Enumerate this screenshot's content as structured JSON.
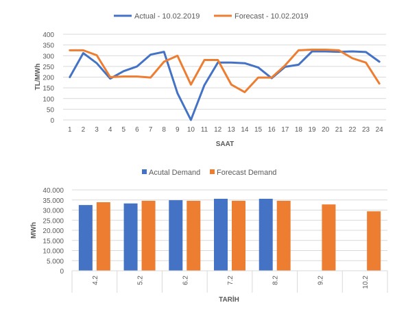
{
  "colors": {
    "actual": "#4472C4",
    "forecast": "#ED7D31",
    "grid": "#d9d9d9",
    "text": "#595959"
  },
  "chart_data": [
    {
      "type": "line",
      "xlabel": "SAAT",
      "ylabel": "TL/MWh",
      "ylim": [
        0,
        400
      ],
      "yticks": [
        "0",
        "50",
        "100",
        "150",
        "200",
        "250",
        "300",
        "350",
        "400"
      ],
      "ytick_values": [
        0,
        50,
        100,
        150,
        200,
        250,
        300,
        350,
        400
      ],
      "x": [
        "1",
        "2",
        "3",
        "4",
        "5",
        "6",
        "7",
        "8",
        "9",
        "10",
        "11",
        "12",
        "13",
        "14",
        "15",
        "16",
        "17",
        "18",
        "19",
        "20",
        "21",
        "22",
        "23",
        "24"
      ],
      "grid": true,
      "legend": "top-center",
      "series": [
        {
          "name": "Actual - 10.02.2019",
          "values": [
            200,
            312,
            265,
            193,
            228,
            250,
            305,
            318,
            125,
            0,
            163,
            268,
            268,
            265,
            245,
            195,
            248,
            258,
            320,
            320,
            318,
            320,
            317,
            272
          ]
        },
        {
          "name": "Forecast - 10.02.2019",
          "values": [
            325,
            325,
            302,
            200,
            203,
            203,
            198,
            272,
            300,
            165,
            280,
            280,
            165,
            130,
            198,
            198,
            255,
            325,
            328,
            328,
            325,
            288,
            268,
            170
          ]
        }
      ]
    },
    {
      "type": "bar",
      "xlabel": "TARİH",
      "ylabel": "MWh",
      "ylim": [
        0,
        40000
      ],
      "yticks": [
        "0",
        "5.000",
        "10.000",
        "15.000",
        "20.000",
        "25.000",
        "30.000",
        "35.000",
        "40.000"
      ],
      "ytick_values": [
        0,
        5000,
        10000,
        15000,
        20000,
        25000,
        30000,
        35000,
        40000
      ],
      "categories": [
        "4.2",
        "5.2",
        "6.2",
        "7.2",
        "8.2",
        "9.2",
        "10.2"
      ],
      "grid": true,
      "legend": "top-center",
      "series": [
        {
          "name": "Acutal Demand",
          "values": [
            32500,
            33300,
            34900,
            35600,
            35600,
            null,
            null
          ]
        },
        {
          "name": "Forecast Demand",
          "values": [
            33900,
            34600,
            34600,
            34600,
            34600,
            32800,
            29400
          ]
        }
      ]
    }
  ]
}
